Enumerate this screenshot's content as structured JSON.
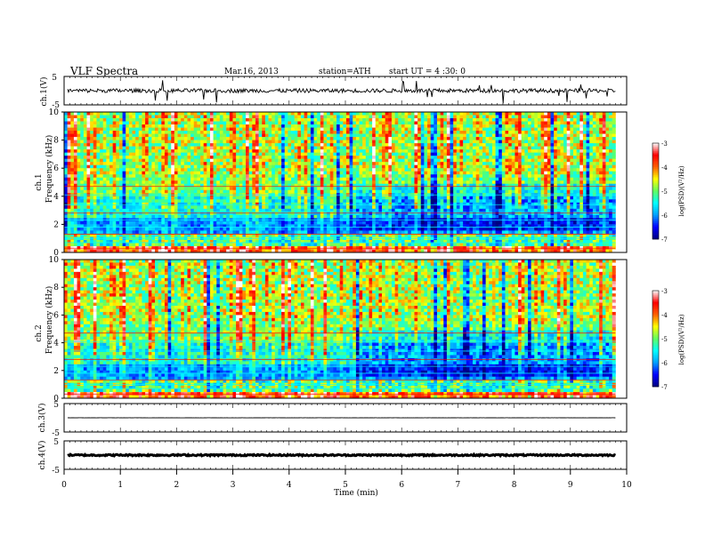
{
  "header": {
    "title": "VLF  Spectra",
    "date": "Mar.16, 2013",
    "station": "station=ATH",
    "start": "start  UT  =   4  :30: 0"
  },
  "chart_data": [
    {
      "type": "line",
      "id": "ch1_waveform",
      "ylabel": "ch.1(V)",
      "ylim": [
        -5,
        5
      ],
      "yticks": [
        "5",
        "-5"
      ],
      "xlim": [
        0,
        10
      ],
      "baseline": 0,
      "data_end_min": 9.8
    },
    {
      "type": "heatmap",
      "id": "ch1_spectrogram",
      "ylabel_channel": "ch.1",
      "ylabel": "Frequency  (kHz)",
      "ylim": [
        0,
        10
      ],
      "yticks": [
        "0",
        "2",
        "4",
        "6",
        "8",
        "10"
      ],
      "xlim": [
        0,
        10
      ],
      "data_end_min": 9.8,
      "colorbar": {
        "label": "log(PSD)(V²/Hz)",
        "range": [
          -7,
          -3
        ],
        "ticks": [
          "-3",
          "-4",
          "-5",
          "-6",
          "-7"
        ]
      }
    },
    {
      "type": "heatmap",
      "id": "ch2_spectrogram",
      "ylabel_channel": "ch.2",
      "ylabel": "Frequency  (kHz)",
      "ylim": [
        0,
        10
      ],
      "yticks": [
        "0",
        "2",
        "4",
        "6",
        "8",
        "10"
      ],
      "xlim": [
        0,
        10
      ],
      "data_end_min": 9.8,
      "colorbar": {
        "label": "log(PSD)(V²/Hz)",
        "range": [
          -7,
          -3
        ],
        "ticks": [
          "-3",
          "-4",
          "-5",
          "-6",
          "-7"
        ]
      }
    },
    {
      "type": "line",
      "id": "ch3_waveform",
      "ylabel": "ch.3(V)",
      "ylim": [
        -5,
        5
      ],
      "yticks": [
        "5",
        "-5"
      ],
      "xlim": [
        0,
        10
      ],
      "baseline": 0
    },
    {
      "type": "line",
      "id": "ch4_waveform",
      "ylabel": "ch.4(V)",
      "ylim": [
        -5,
        5
      ],
      "yticks": [
        "5",
        "-5"
      ],
      "xlim": [
        0,
        10
      ],
      "baseline": 0,
      "xlabel": "Time  (min)",
      "xticks": [
        "0",
        "1",
        "2",
        "3",
        "4",
        "5",
        "6",
        "7",
        "8",
        "9",
        "10"
      ]
    }
  ],
  "colors": {
    "cmap": [
      "#000080",
      "#0000ff",
      "#00a0ff",
      "#00ffff",
      "#60ff60",
      "#ffff00",
      "#ff6000",
      "#ff0000",
      "#ffffff"
    ]
  }
}
